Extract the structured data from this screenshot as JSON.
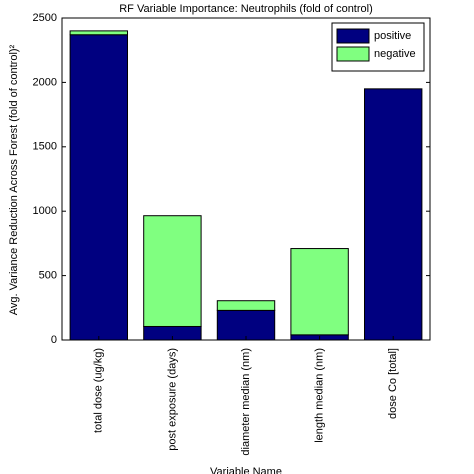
{
  "chart_data": {
    "type": "stacked_bar",
    "title": "RF Variable Importance:  Neutrophils (fold of control)",
    "y_label": "Avg. Variance Reduction Across Forest (fold of control)²",
    "x_label": "Variable Name",
    "categories": [
      "total dose (ug/kg)",
      "post exposure (days)",
      "diameter median (nm)",
      "length median (nm)",
      "dose Co [total]"
    ],
    "series": [
      {
        "name": "positive",
        "color": "#000080",
        "values": [
          2370,
          105,
          230,
          40,
          1950
        ]
      },
      {
        "name": "negative",
        "color": "#80ff80",
        "values": [
          30,
          860,
          75,
          670,
          0
        ]
      }
    ],
    "ylim": [
      0,
      2500
    ],
    "yticks": [
      0,
      500,
      1000,
      1500,
      2000,
      2500
    ],
    "legend": "top-right",
    "grid": false
  }
}
